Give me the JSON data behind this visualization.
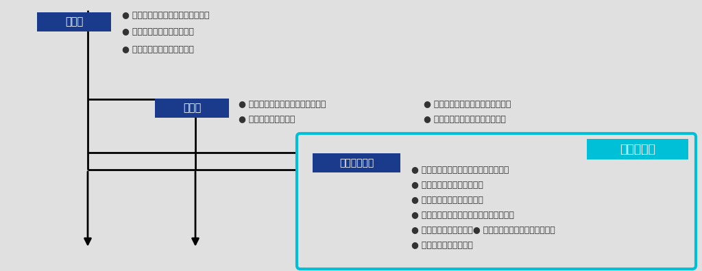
{
  "bg_color": "#e0e0e0",
  "dark_blue": "#1a3a8c",
  "cyan": "#00c0d8",
  "text_dark": "#333333",
  "phase1_label": "導入期",
  "phase2_label": "展開期",
  "phase3_label": "変革・定着期",
  "focus_label": "最近の焦点",
  "phase1_items": [
    "● コンプライアンス体制の立ち上げ",
    "● 倫理行動基準の策定・公布",
    "● キックオフセミナーの開催"
  ],
  "phase2_items_left": [
    "● ヘルプライン（相談窓口）の設置",
    "● モニタリングの実施"
  ],
  "phase2_items_right": [
    "● 推進リーダーの任命と教育の実施",
    "● リスクマネジメント体制の確立"
  ],
  "phase3_items": [
    "● ラインマネジメント（現場力）の強化",
    "● オープンな組織風土の醸成",
    "● セルフエスティームの向上",
    "● 各種規定、マニュアルの見直しと再整備",
    "● 評価制度との連動　　● グループ（関係会社）への展開",
    "● グローバル化への対応"
  ],
  "font_size_label": 10.5,
  "font_size_item": 9.0,
  "font_size_focus": 12.5
}
